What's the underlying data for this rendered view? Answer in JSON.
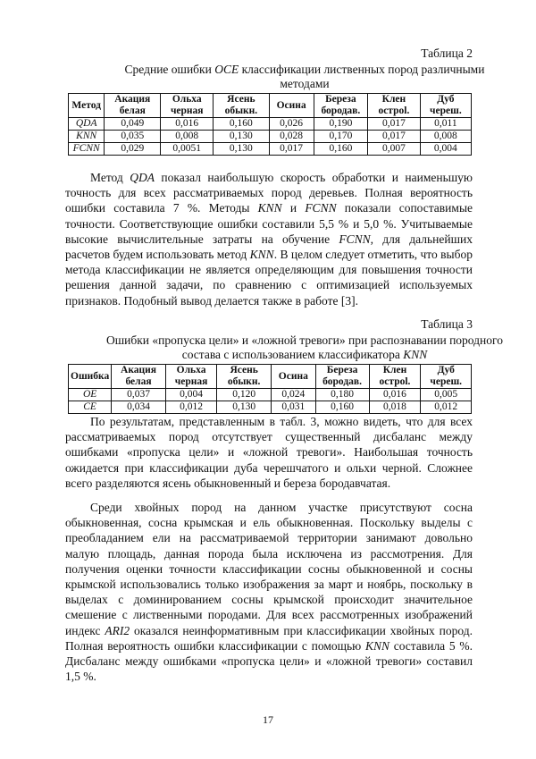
{
  "table2": {
    "label": "Таблица 2",
    "title": [
      "Средние ошибки ",
      "OCE",
      " классификации лиственных пород различными методами"
    ],
    "header": [
      [
        "Метод"
      ],
      [
        "Акация",
        "белая"
      ],
      [
        "Ольха",
        "черная"
      ],
      [
        "Ясень",
        "обыкн."
      ],
      [
        "Осина"
      ],
      [
        "Береза",
        "бородав."
      ],
      [
        "Клен",
        "остроl."
      ],
      [
        "Дуб",
        "череш."
      ]
    ],
    "rows": [
      [
        "QDA",
        "0,049",
        "0,016",
        "0,160",
        "0,026",
        "0,190",
        "0,017",
        "0,011"
      ],
      [
        "KNN",
        "0,035",
        "0,008",
        "0,130",
        "0,028",
        "0,170",
        "0,017",
        "0,008"
      ],
      [
        "FCNN",
        "0,029",
        "0,0051",
        "0,130",
        "0,017",
        "0,160",
        "0,007",
        "0,004"
      ]
    ]
  },
  "paragraph1": [
    "Метод ",
    "QDA",
    " показал наибольшую скорость обработки и наименьшую точность для всех рассматриваемых пород деревьев. Полная вероятность ошибки составила 7 %. Методы ",
    "KNN",
    " и ",
    "FCNN",
    " показали сопоставимые точности. Соответствующие ошибки составили 5,5 % и 5,0 %. Учитываемые высокие вычислительные затраты на обучение ",
    "FCNN",
    ", для дальнейших расчетов будем использовать метод ",
    "KNN",
    ". В целом следует отметить, что выбор метода классификации не является определяющим для повышения точности решения данной задачи, по сравнению с оптимизацией используемых признаков. Подобный вывод делается также в работе [3]."
  ],
  "table3": {
    "label": "Таблица 3",
    "title": [
      "Ошибки «пропуска цели» и «ложной тревоги» при распознавании породного состава с использованием классификатора ",
      "KNN"
    ],
    "header": [
      [
        "Ошибка"
      ],
      [
        "Акация",
        "белая"
      ],
      [
        "Ольха",
        "черная"
      ],
      [
        "Ясень",
        "обыкн."
      ],
      [
        "Осина"
      ],
      [
        "Береза",
        "бородав."
      ],
      [
        "Клен",
        "остроl."
      ],
      [
        "Дуб",
        "череш."
      ]
    ],
    "rows": [
      [
        "OE",
        "0,037",
        "0,004",
        "0,120",
        "0,024",
        "0,180",
        "0,016",
        "0,005"
      ],
      [
        "CE",
        "0,034",
        "0,012",
        "0,130",
        "0,031",
        "0,160",
        "0,018",
        "0,012"
      ]
    ]
  },
  "paragraph2": [
    "По результатам, представленным в табл. 3, можно видеть, что для всех рассматриваемых пород отсутствует существенный дисбаланс между ошибками «пропуска цели» и «ложной тревоги». Наибольшая точность ожидается при классификации дуба черешчатого и ольхи черной. Сложнее всего разделяются ясень обыкновенный и береза бородавчатая."
  ],
  "paragraph3": [
    "Среди хвойных пород на данном участке присутствуют сосна обыкновенная, сосна крымская и ель обыкновенная. Поскольку выделы с преобладанием ели на рассматриваемой территории занимают довольно малую площадь, данная порода была исключена из рассмотрения. Для получения оценки точности классификации сосны обыкновенной и сосны крымской использовались только изображения за март и ноябрь, поскольку в выделах с доминированием сосны крымской происходит значительное смешение с лиственными породами. Для всех рассмотренных изображений индекс ",
    "ARI2",
    " оказался неинформативным при классификации хвойных пород. Полная вероятность ошибки классификации с помощью ",
    "KNN",
    " составила 5 %. Дисбаланс между ошибками «пропуска цели» и «ложной тревоги» составил 1,5 %."
  ],
  "page_number": "17"
}
